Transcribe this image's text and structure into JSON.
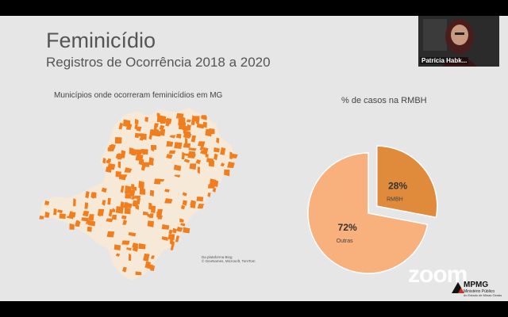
{
  "slide": {
    "title": "Feminicídio",
    "subtitle": "Registros de Ocorrência 2018 a 2020",
    "map_caption": "Municípios onde ocorreram feminicídios em MG",
    "map_attribution_line1": "Da plataforma Bing",
    "map_attribution_line2": "© GeoNames, Microsoft, TomTom",
    "pie_caption": "% de casos na RMBH"
  },
  "chart_data": {
    "type": "pie",
    "title": "% de casos na RMBH",
    "slices": [
      {
        "label": "RMBH",
        "value": 28,
        "value_label": "28%",
        "color": "#e08a3c",
        "exploded": true
      },
      {
        "label": "Outras",
        "value": 72,
        "value_label": "72%",
        "color": "#f8b07c",
        "exploded": false
      }
    ]
  },
  "video": {
    "participant_name": "Patrícia Habk..."
  },
  "branding": {
    "zoom": "zoom",
    "org_logo": "MPMG",
    "org_name": "Ministério Público",
    "org_sub": "do Estado de Minas Gerais"
  },
  "colors": {
    "map_fill": "#f7e9d8",
    "map_highlight": "#f07e1e",
    "slide_bg": "#e6e6e6"
  }
}
